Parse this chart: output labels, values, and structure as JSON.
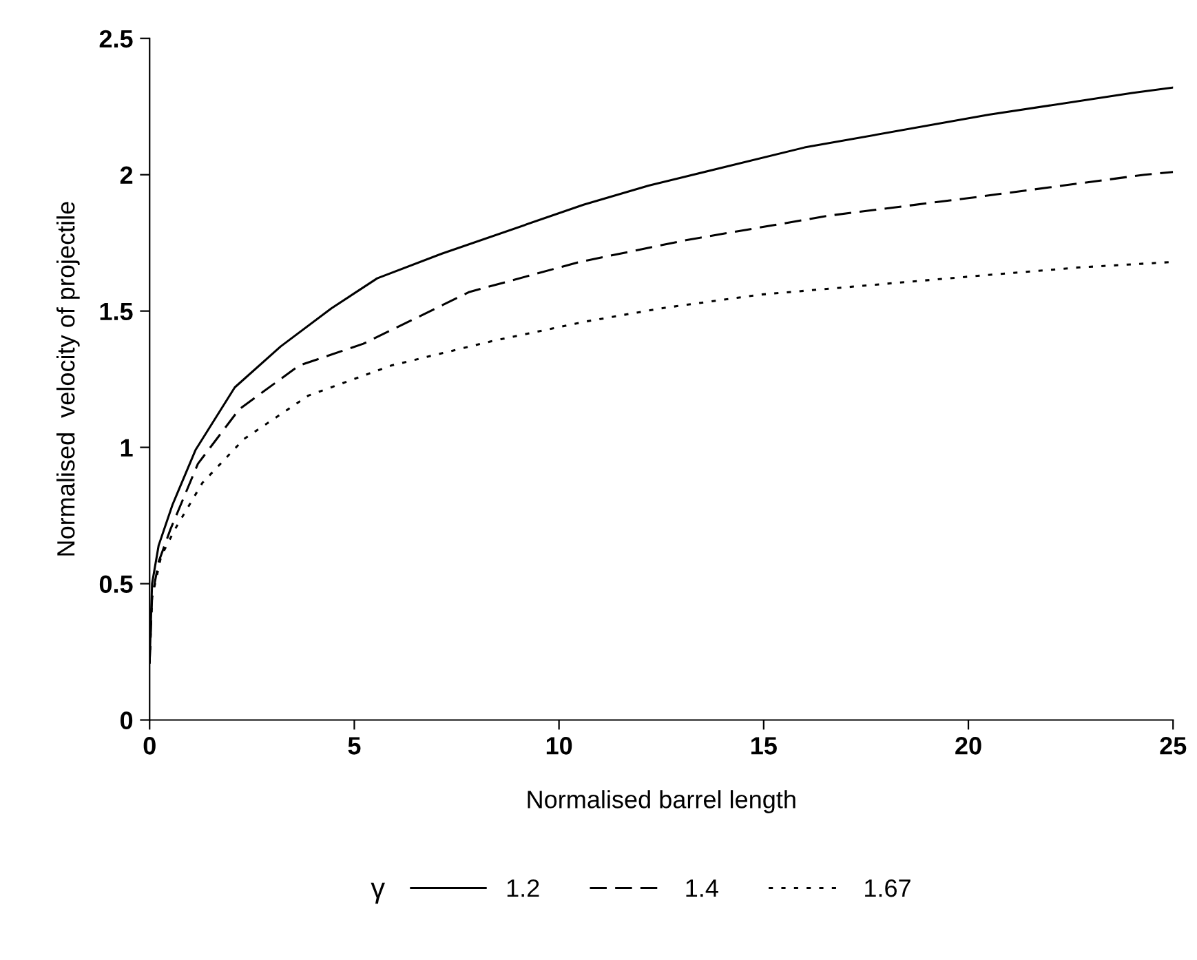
{
  "chart_data": {
    "type": "line",
    "xlabel": "Normalised barrel length",
    "ylabel": "Normalised  velocity of projectile",
    "legend_title": "γ",
    "legend": "bottom",
    "grid": false,
    "marker": "none",
    "xlim": [
      0,
      25
    ],
    "xticks": [
      0,
      5,
      10,
      15,
      20,
      25
    ],
    "ylim": [
      0,
      2.5
    ],
    "yticks": [
      0,
      0.5,
      1,
      1.5,
      2,
      2.5
    ],
    "series": [
      {
        "name": "1.2",
        "color": "#000000",
        "line_style": "solid",
        "x": [
          0,
          0.06,
          0.22,
          0.56,
          1.12,
          2.08,
          3.2,
          4.44,
          5.56,
          7.13,
          10.6,
          12.19,
          16.0,
          20.5,
          24.0,
          25
        ],
        "values": [
          0.21,
          0.5,
          0.64,
          0.79,
          0.99,
          1.22,
          1.37,
          1.51,
          1.62,
          1.71,
          1.89,
          1.96,
          2.1,
          2.22,
          2.3,
          2.32
        ]
      },
      {
        "name": "1.4",
        "color": "#000000",
        "line_style": "dashed",
        "x": [
          0,
          0.06,
          0.22,
          0.51,
          1.18,
          2.19,
          3.65,
          5.22,
          7.81,
          10.5,
          13.1,
          16.6,
          20.3,
          24.3,
          25
        ],
        "values": [
          0.21,
          0.45,
          0.58,
          0.7,
          0.94,
          1.14,
          1.3,
          1.38,
          1.57,
          1.68,
          1.76,
          1.85,
          1.92,
          2.0,
          2.01
        ]
      },
      {
        "name": "1.67",
        "color": "#000000",
        "line_style": "dotted",
        "x": [
          0,
          0.06,
          0.28,
          0.62,
          1.29,
          2.3,
          3.88,
          5.9,
          8.37,
          10.6,
          12.5,
          14.9,
          20.3,
          22.7,
          25
        ],
        "values": [
          0.21,
          0.45,
          0.6,
          0.7,
          0.87,
          1.03,
          1.19,
          1.3,
          1.39,
          1.46,
          1.51,
          1.56,
          1.63,
          1.66,
          1.68
        ]
      }
    ]
  }
}
